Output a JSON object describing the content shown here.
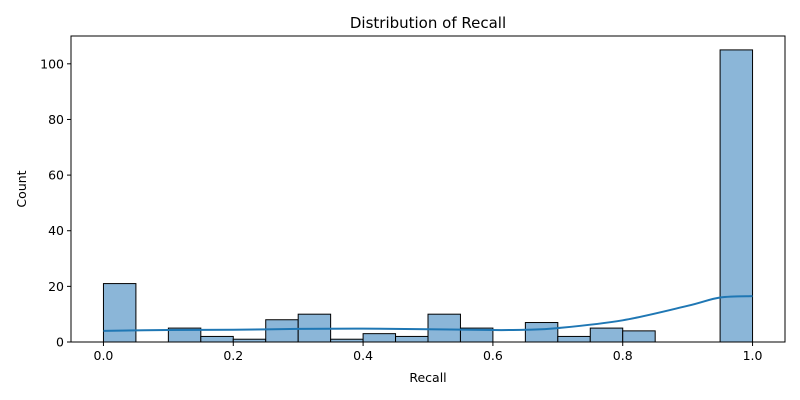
{
  "chart_data": {
    "type": "bar",
    "title": "Distribution of Recall",
    "xlabel": "Recall",
    "ylabel": "Count",
    "xlim": [
      -0.05,
      1.05
    ],
    "ylim": [
      0,
      110
    ],
    "xticks": [
      0.0,
      0.2,
      0.4,
      0.6,
      0.8,
      1.0
    ],
    "xtick_labels": [
      "0.0",
      "0.2",
      "0.4",
      "0.6",
      "0.8",
      "1.0"
    ],
    "yticks": [
      0,
      20,
      40,
      60,
      80,
      100
    ],
    "ytick_labels": [
      "0",
      "20",
      "40",
      "60",
      "80",
      "100"
    ],
    "bin_width": 0.05,
    "bin_edges": [
      0.0,
      0.05,
      0.1,
      0.15,
      0.2,
      0.25,
      0.3,
      0.35,
      0.4,
      0.45,
      0.5,
      0.55,
      0.6,
      0.65,
      0.7,
      0.75,
      0.8,
      0.85,
      0.9,
      0.95,
      1.0
    ],
    "counts": [
      21,
      0,
      5,
      2,
      1,
      8,
      10,
      1,
      3,
      2,
      10,
      5,
      0,
      7,
      2,
      5,
      4,
      0,
      0,
      105
    ],
    "kde": {
      "x": [
        0.0,
        0.1,
        0.2,
        0.3,
        0.4,
        0.5,
        0.6,
        0.65,
        0.7,
        0.8,
        0.9,
        0.95,
        1.0
      ],
      "y": [
        4.0,
        4.3,
        4.4,
        4.7,
        4.8,
        4.6,
        4.3,
        4.4,
        5.0,
        7.8,
        13.0,
        16.0,
        16.5
      ]
    },
    "grid": false,
    "colors": {
      "bar_fill": "#8bb6d8",
      "bar_edge": "#000000",
      "kde_line": "#1f77b4"
    }
  }
}
